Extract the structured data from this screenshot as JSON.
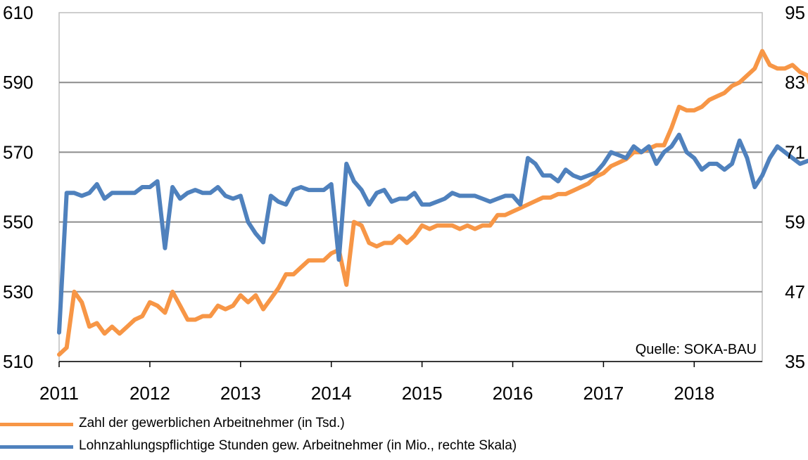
{
  "chart_data": {
    "type": "line",
    "title": "",
    "source": "Quelle: SOKA-BAU",
    "x_tick_labels": [
      "2011",
      "2012",
      "2013",
      "2014",
      "2015",
      "2016",
      "2017",
      "2018"
    ],
    "x_range": [
      2011.0,
      2018.75
    ],
    "y_left": {
      "range": [
        510,
        610
      ],
      "ticks": [
        "510",
        "530",
        "550",
        "570",
        "590",
        "610"
      ]
    },
    "y_right": {
      "range": [
        35,
        95
      ],
      "ticks": [
        "35",
        "47",
        "59",
        "71",
        "83",
        "95"
      ]
    },
    "grid": true,
    "legend_position": "bottom",
    "series": [
      {
        "name": "Zahl der gewerblichen Arbeitnehmer (in Tsd.)",
        "axis": "left",
        "color": "#F79646",
        "start": 2011.0,
        "step_months": 1,
        "values": [
          512,
          514,
          530,
          527,
          520,
          521,
          518,
          520,
          518,
          520,
          522,
          523,
          527,
          526,
          524,
          530,
          526,
          522,
          522,
          523,
          523,
          526,
          525,
          526,
          529,
          527,
          529,
          525,
          528,
          531,
          535,
          535,
          537,
          539,
          539,
          539,
          541,
          542,
          532,
          550,
          549,
          544,
          543,
          544,
          544,
          546,
          544,
          546,
          549,
          548,
          549,
          549,
          549,
          548,
          549,
          548,
          549,
          549,
          552,
          552,
          553,
          554,
          555,
          556,
          557,
          557,
          558,
          558,
          559,
          560,
          561,
          563,
          564,
          566,
          567,
          568,
          570,
          570,
          571,
          572,
          572,
          577,
          583,
          582,
          582,
          583,
          585,
          586,
          587,
          589,
          590,
          592,
          594,
          599,
          595,
          594,
          594,
          595,
          593,
          592,
          584
        ]
      },
      {
        "name": "Lohnzahlungspflichtige Stunden gew. Arbeitnehmer (in Mio., rechte Skala)",
        "axis": "right",
        "color": "#4F81BD",
        "start": 2011.0,
        "step_months": 1,
        "values": [
          40,
          64,
          64,
          63.5,
          64,
          65.5,
          63,
          64,
          64,
          64,
          64,
          65,
          65,
          66,
          54.5,
          65,
          63,
          64,
          64.5,
          64,
          64,
          65,
          63.5,
          63,
          63.5,
          59,
          57,
          55.5,
          63.5,
          62.5,
          62,
          64.5,
          65,
          64.5,
          64.5,
          64.5,
          65.5,
          52.5,
          69,
          66,
          64.5,
          62,
          64,
          64.5,
          62.5,
          63,
          63,
          64,
          62,
          62,
          62.5,
          63,
          64,
          63.5,
          63.5,
          63.5,
          63,
          62.5,
          63,
          63.5,
          63.5,
          62,
          70,
          69,
          67,
          67,
          66,
          68,
          67,
          66.5,
          67,
          67.5,
          69,
          71,
          70.5,
          70,
          72,
          71,
          72,
          69,
          71,
          72,
          74,
          71,
          70,
          68,
          69,
          69,
          68,
          69,
          73,
          70,
          65,
          67,
          70,
          72,
          71,
          70,
          69,
          69.5
        ]
      }
    ]
  }
}
